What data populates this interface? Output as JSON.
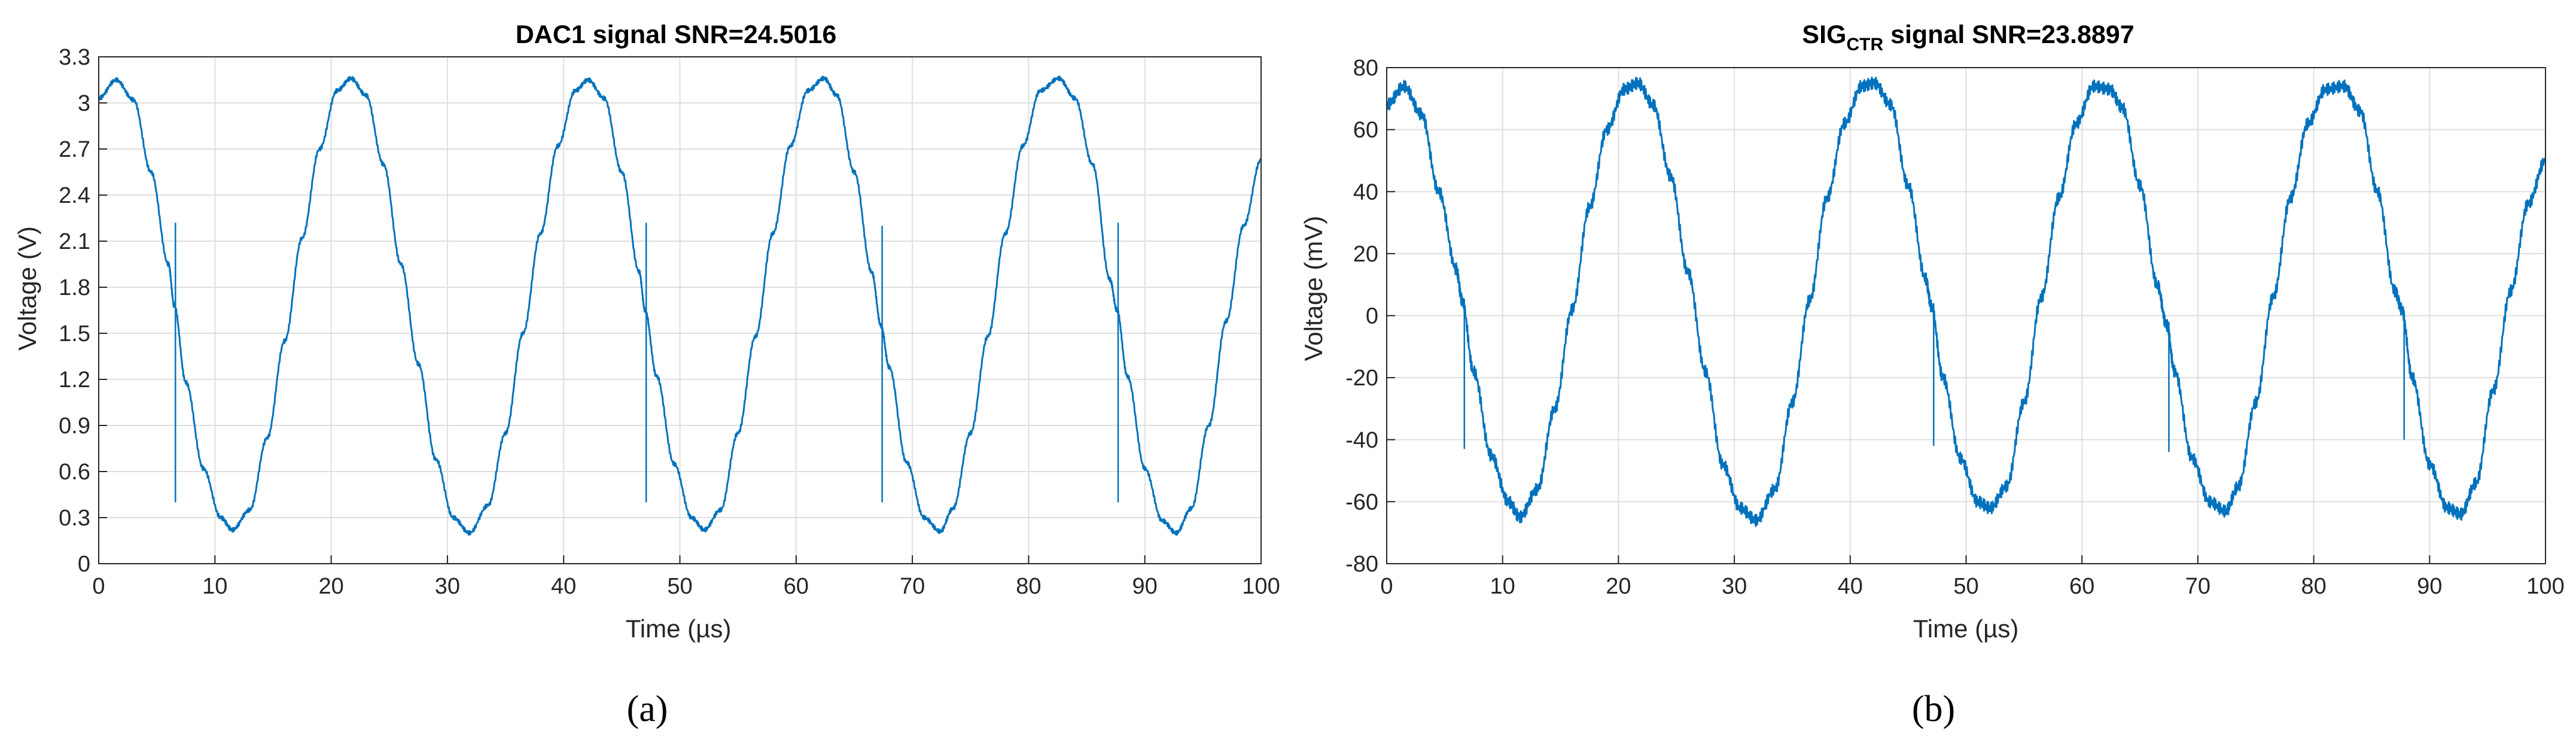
{
  "chart_data": [
    {
      "type": "line",
      "title": "DAC1 signal SNR=24.5016",
      "xlabel": "Time (µs)",
      "ylabel": "Voltage (V)",
      "xlim": [
        0,
        100
      ],
      "ylim": [
        0,
        3.3
      ],
      "xticks": [
        "0",
        "10",
        "20",
        "30",
        "40",
        "50",
        "60",
        "70",
        "80",
        "90",
        "100"
      ],
      "yticks": [
        "0",
        "0.3",
        "0.6",
        "0.9",
        "1.2",
        "1.5",
        "1.8",
        "2.1",
        "2.4",
        "2.7",
        "3",
        "3.3"
      ],
      "grid": true,
      "color": "#0072BD",
      "series": [
        {
          "x": [
            0,
            1.5,
            3,
            4.5,
            6,
            6.5,
            7.5,
            9,
            10.5,
            11.5,
            13,
            14.5,
            16,
            17.5,
            19,
            20.5,
            21.7,
            23,
            24.5,
            26,
            27.5,
            29,
            30.5,
            31.9,
            33.5,
            35,
            36.5,
            38,
            39.5,
            41,
            42.1,
            43.5,
            45,
            46.5,
            47,
            48,
            49.5,
            51,
            52.1,
            53.5,
            55,
            56.5,
            58,
            59.5,
            61,
            62.4,
            63.5,
            65,
            66.5,
            67.3,
            68,
            69.5,
            71,
            72.4,
            73.5,
            75,
            76.5,
            78,
            79.5,
            81,
            82.6,
            84,
            85.5,
            87,
            87.6,
            88.5,
            90,
            91.5,
            92.7,
            94,
            95.5,
            97,
            98.5,
            100
          ],
          "y": [
            3.03,
            3.15,
            3.02,
            2.55,
            1.95,
            1.68,
            1.18,
            0.62,
            0.3,
            0.22,
            0.35,
            0.82,
            1.45,
            2.12,
            2.7,
            3.08,
            3.16,
            3.05,
            2.6,
            1.95,
            1.3,
            0.68,
            0.3,
            0.2,
            0.38,
            0.85,
            1.5,
            2.15,
            2.72,
            3.08,
            3.15,
            3.03,
            2.55,
            1.9,
            1.65,
            1.22,
            0.65,
            0.3,
            0.22,
            0.35,
            0.85,
            1.48,
            2.15,
            2.72,
            3.08,
            3.16,
            3.05,
            2.55,
            1.9,
            1.55,
            1.28,
            0.66,
            0.3,
            0.21,
            0.36,
            0.85,
            1.48,
            2.15,
            2.72,
            3.08,
            3.16,
            3.03,
            2.6,
            1.85,
            1.65,
            1.22,
            0.62,
            0.28,
            0.2,
            0.36,
            0.9,
            1.58,
            2.2,
            2.63
          ]
        }
      ],
      "spikes": [
        {
          "x": 6.6,
          "y_top": 2.22,
          "y_bottom": 0.4
        },
        {
          "x": 47.1,
          "y_top": 2.22,
          "y_bottom": 0.4
        },
        {
          "x": 67.4,
          "y_top": 2.2,
          "y_bottom": 0.4
        },
        {
          "x": 87.7,
          "y_top": 2.22,
          "y_bottom": 0.4
        }
      ]
    },
    {
      "type": "line",
      "title": "SIG",
      "title_subscript": "CTR",
      "title_suffix": " signal SNR=23.8897",
      "xlabel": "Time (µs)",
      "ylabel": "Voltage (mV)",
      "xlim": [
        0,
        100
      ],
      "ylim": [
        -80,
        80
      ],
      "xticks": [
        "0",
        "10",
        "20",
        "30",
        "40",
        "50",
        "60",
        "70",
        "80",
        "90",
        "100"
      ],
      "yticks": [
        "-80",
        "-60",
        "-40",
        "-20",
        "0",
        "20",
        "40",
        "60",
        "80"
      ],
      "grid": true,
      "color": "#0072BD",
      "series": [
        {
          "x": [
            0,
            1.5,
            3,
            4.5,
            6,
            6.5,
            7.5,
            9,
            10.5,
            11.5,
            13,
            14.5,
            16,
            17.5,
            19,
            20.5,
            21.7,
            23,
            24.5,
            26,
            27.5,
            29,
            30.5,
            31.9,
            33.5,
            35,
            36.5,
            38,
            39.5,
            41,
            42.1,
            43.5,
            45,
            46.5,
            47,
            48,
            49.5,
            51,
            52.1,
            53.5,
            55,
            56.5,
            58,
            59.5,
            61,
            62.4,
            63.5,
            65,
            66.5,
            67.3,
            68,
            69.5,
            71,
            72.4,
            73.5,
            75,
            76.5,
            78,
            79.5,
            81,
            82.6,
            84,
            85.5,
            87,
            87.6,
            88.5,
            90,
            91.5,
            92.7,
            94,
            95.5,
            97,
            98.5,
            100
          ],
          "y": [
            68,
            74,
            65,
            40,
            15,
            5,
            -18,
            -45,
            -60,
            -65,
            -56,
            -30,
            2,
            35,
            60,
            73,
            75,
            68,
            45,
            14,
            -18,
            -48,
            -62,
            -66,
            -56,
            -28,
            5,
            38,
            62,
            74,
            75,
            68,
            42,
            12,
            3,
            -20,
            -46,
            -60,
            -62,
            -55,
            -28,
            6,
            38,
            62,
            74,
            73,
            67,
            42,
            10,
            -3,
            -18,
            -46,
            -60,
            -63,
            -55,
            -28,
            6,
            38,
            62,
            73,
            74,
            66,
            40,
            8,
            2,
            -20,
            -48,
            -62,
            -64,
            -54,
            -24,
            8,
            36,
            50
          ]
        }
      ],
      "spikes": [
        {
          "x": 6.7,
          "y_top": 5,
          "y_bottom": -43
        },
        {
          "x": 47.2,
          "y_top": 4,
          "y_bottom": -42
        },
        {
          "x": 67.5,
          "y_top": -2,
          "y_bottom": -44
        },
        {
          "x": 87.8,
          "y_top": 0,
          "y_bottom": -40
        }
      ]
    }
  ],
  "captions": [
    "(a)",
    "(b)"
  ]
}
